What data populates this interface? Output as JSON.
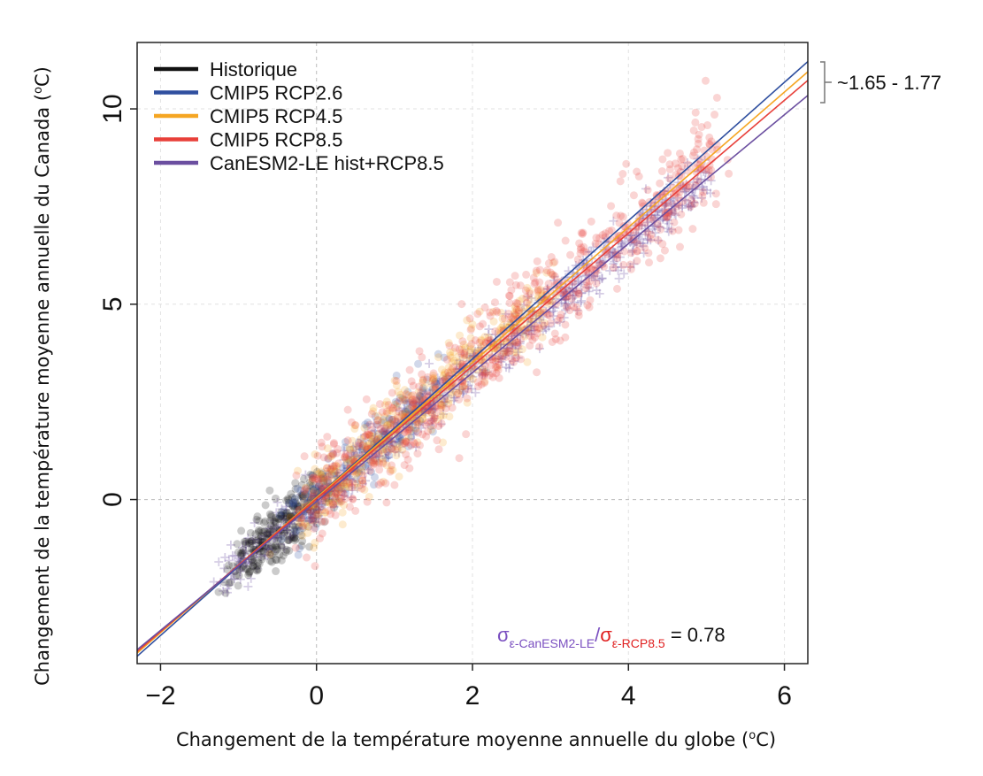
{
  "chart_data": {
    "type": "scatter",
    "xlabel": "Changement de la température moyenne annuelle du globe (",
    "xlabel_sup": "o",
    "xlabel_tail": "C)",
    "ylabel": "Changement de la température moyenne annuelle du Canada (",
    "ylabel_sup": "o",
    "ylabel_tail": "C)",
    "xlim": [
      -2.3,
      6.3
    ],
    "ylim": [
      -4.2,
      11.7
    ],
    "xticks": [
      -2,
      0,
      2,
      4,
      6
    ],
    "xtick_labels": [
      "−2",
      "0",
      "2",
      "4",
      "6"
    ],
    "yticks": [
      0,
      5,
      10
    ],
    "ytick_labels": [
      "0",
      "5",
      "10"
    ],
    "grid": true,
    "legend_position": "top-left",
    "series": [
      {
        "name": "Historique",
        "color": "#111111",
        "marker": "circle",
        "x_range": [
          -1.0,
          0.05
        ],
        "slope": 1.7,
        "intercept": 0.0,
        "spread": 0.55
      },
      {
        "name": "CMIP5 RCP2.6",
        "color": "#2f4f9f",
        "marker": "circle",
        "x_range": [
          -0.3,
          1.6
        ],
        "slope": 1.77,
        "intercept": 0.1,
        "spread": 0.55
      },
      {
        "name": "CMIP5 RCP4.5",
        "color": "#f5a623",
        "marker": "circle",
        "x_range": [
          -0.2,
          3.0
        ],
        "slope": 1.72,
        "intercept": 0.1,
        "spread": 0.7
      },
      {
        "name": "CMIP5 RCP8.5",
        "color": "#e8403a",
        "marker": "circle",
        "x_range": [
          -0.1,
          5.1
        ],
        "slope": 1.7,
        "intercept": 0.1,
        "spread": 0.9
      },
      {
        "name": "CanESM2-LE hist+RCP8.5",
        "color": "#6b4fa0",
        "marker": "cross",
        "x_range": [
          -1.2,
          5.0
        ],
        "slope": 1.65,
        "intercept": 0.0,
        "spread": 0.45
      }
    ],
    "regression_lines": [
      {
        "name": "CMIP5 RCP2.6",
        "color": "#2f4f9f",
        "slope": 1.77,
        "intercept": 0.06
      },
      {
        "name": "CMIP5 RCP4.5",
        "color": "#f5a623",
        "slope": 1.73,
        "intercept": 0.05
      },
      {
        "name": "CMIP5 RCP8.5",
        "color": "#e8403a",
        "slope": 1.7,
        "intercept": 0.02
      },
      {
        "name": "CanESM2-LE hist+RCP8.5",
        "color": "#6b4fa0",
        "slope": 1.65,
        "intercept": -0.05
      }
    ],
    "slope_range_label": "~1.65 - 1.77",
    "ratio_annotation": {
      "sigma": "σ",
      "sub1": "ε-CanESM2-LE",
      "slash": "/",
      "sub2": "ε-RCP8.5",
      "value": " = 0.78",
      "color1": "#7a4fc0",
      "color2": "#e02020"
    }
  }
}
